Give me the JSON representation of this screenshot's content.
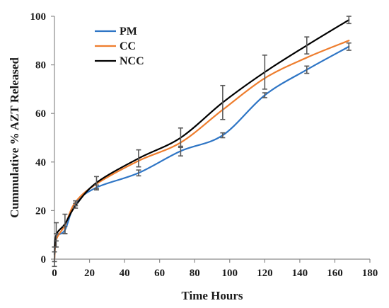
{
  "chart_data": {
    "type": "line",
    "title": "",
    "xlabel": "Time Hours",
    "ylabel": "Cummulative % AZT Released",
    "xlim": [
      0,
      180
    ],
    "ylim": [
      0,
      100
    ],
    "x_ticks": [
      0,
      20,
      40,
      60,
      80,
      100,
      120,
      140,
      160,
      180
    ],
    "y_ticks": [
      0,
      20,
      40,
      60,
      80,
      100
    ],
    "grid": false,
    "legend_position": "top-left",
    "x": [
      0,
      1,
      6,
      12,
      24,
      48,
      72,
      96,
      120,
      144,
      168
    ],
    "series": [
      {
        "name": "PM",
        "color": "#2e75c5",
        "values": [
          0,
          9,
          12,
          23,
          29.5,
          35.5,
          44.5,
          51,
          67.5,
          78,
          87.5
        ],
        "errors": [
          3,
          1.5,
          1.5,
          1,
          1,
          1.2,
          2,
          1,
          1,
          1.5,
          1.5
        ]
      },
      {
        "name": "CC",
        "color": "#ee7d2d",
        "values": [
          0,
          8,
          14,
          23.5,
          31,
          40.5,
          48,
          61.5,
          74.5,
          83,
          90
        ]
      },
      {
        "name": "NCC",
        "color": "#000000",
        "values": [
          2,
          10,
          14.5,
          22,
          31.5,
          41.5,
          50,
          64.5,
          77,
          88,
          98.5
        ],
        "errors": [
          3,
          5,
          4,
          1,
          2.5,
          3.5,
          4,
          7,
          7,
          3.5,
          1.5
        ]
      }
    ]
  }
}
